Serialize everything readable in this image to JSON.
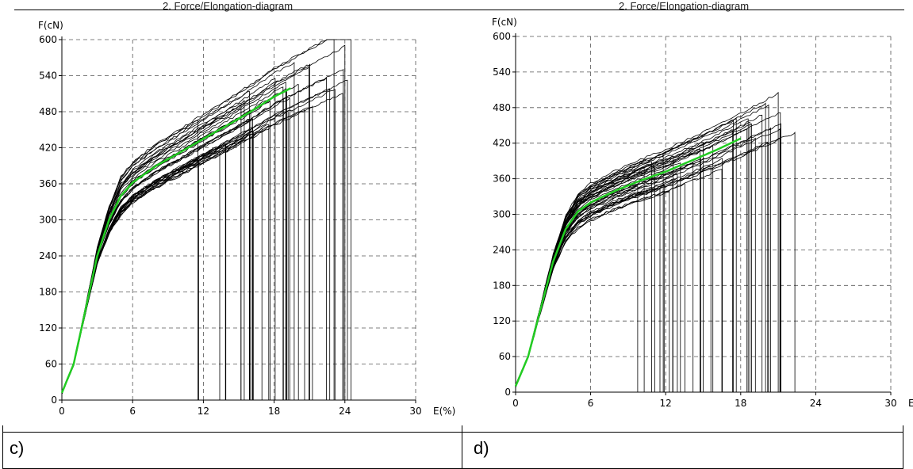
{
  "panels": {
    "c": {
      "caption": "c)",
      "title": "2. Force/Elongation-diagram"
    },
    "d": {
      "caption": "d)",
      "title": "2. Force/Elongation-diagram"
    }
  },
  "chart_data": [
    {
      "type": "line",
      "title": "2. Force/Elongation-diagram",
      "xlabel": "E(%)",
      "ylabel": "F(cN)",
      "xlim": [
        0,
        30
      ],
      "ylim": [
        0,
        600
      ],
      "xticks": [
        0,
        6,
        12,
        18,
        24,
        30
      ],
      "yticks": [
        0,
        60,
        120,
        180,
        240,
        300,
        360,
        420,
        480,
        540,
        600
      ],
      "grid": true,
      "series": [
        {
          "color": "#22cc22",
          "x": [
            0,
            1,
            2,
            3,
            4,
            5,
            6,
            8,
            10,
            12,
            14,
            16,
            18,
            19.5
          ],
          "y": [
            12,
            60,
            150,
            240,
            300,
            340,
            362,
            390,
            412,
            435,
            457,
            480,
            505,
            520
          ]
        }
      ],
      "specimen_curves": {
        "count": 40,
        "color": "#000000",
        "break_x_range": [
          11.5,
          25
        ],
        "break_y_range": [
          440,
          590
        ]
      }
    },
    {
      "type": "line",
      "title": "2. Force/Elongation-diagram",
      "xlabel": "E(%)",
      "ylabel": "F(cN)",
      "xlim": [
        0,
        30
      ],
      "ylim": [
        0,
        600
      ],
      "xticks": [
        0,
        6,
        12,
        18,
        24,
        30
      ],
      "yticks": [
        0,
        60,
        120,
        180,
        240,
        300,
        360,
        420,
        480,
        540,
        600
      ],
      "grid": true,
      "series": [
        {
          "color": "#22cc22",
          "x": [
            0,
            1,
            2,
            3,
            4,
            5,
            6,
            8,
            10,
            12,
            14,
            16,
            18
          ],
          "y": [
            10,
            60,
            140,
            220,
            275,
            305,
            320,
            340,
            357,
            372,
            390,
            408,
            428
          ]
        }
      ],
      "specimen_curves": {
        "count": 40,
        "color": "#000000",
        "break_x_range": [
          9,
          23.5
        ],
        "break_y_range": [
          390,
          525
        ]
      }
    }
  ]
}
